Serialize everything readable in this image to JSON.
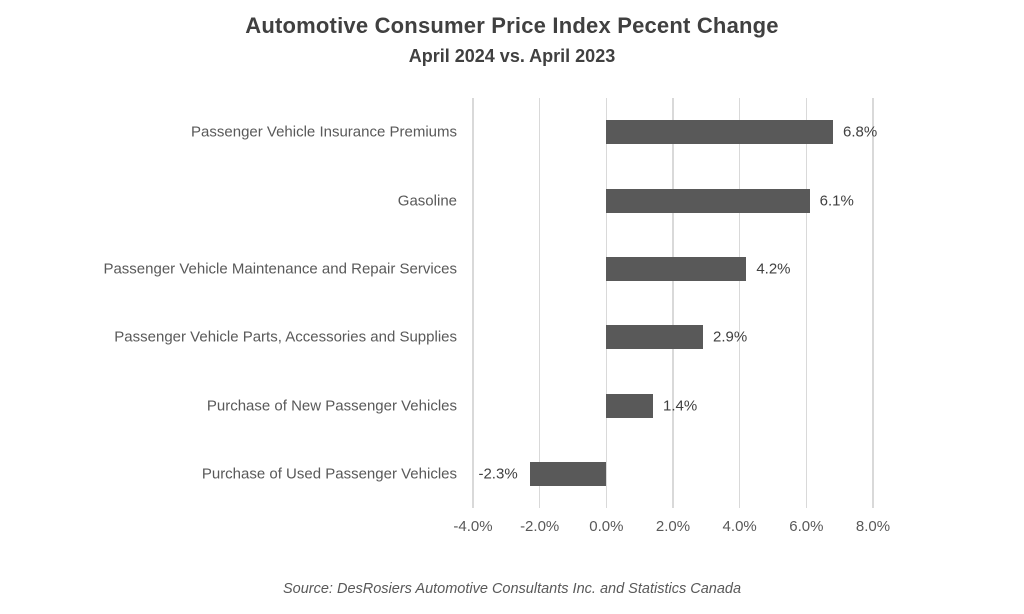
{
  "title": "Automotive Consumer Price Index Pecent Change",
  "subtitle": "April 2024 vs. April 2023",
  "source": "Source: DesRosiers Automotive Consultants Inc. and Statistics Canada",
  "colors": {
    "bar": "#595959",
    "gridline": "#d9d9d9",
    "title_text": "#404040",
    "label_text": "#595959"
  },
  "chart_data": {
    "type": "bar",
    "orientation": "horizontal",
    "title": "Automotive Consumer Price Index Pecent Change",
    "subtitle": "April 2024 vs. April 2023",
    "categories": [
      "Passenger Vehicle Insurance Premiums",
      "Gasoline",
      "Passenger Vehicle Maintenance and Repair Services",
      "Passenger Vehicle Parts, Accessories and Supplies",
      "Purchase of New Passenger Vehicles",
      "Purchase of Used Passenger Vehicles"
    ],
    "values": [
      6.8,
      6.1,
      4.2,
      2.9,
      1.4,
      -2.3
    ],
    "value_labels": [
      "6.8%",
      "6.1%",
      "4.2%",
      "2.9%",
      "1.4%",
      "-2.3%"
    ],
    "xlim": [
      -4,
      8
    ],
    "xticks": [
      -4,
      -2,
      0,
      2,
      4,
      6,
      8
    ],
    "xtick_labels": [
      "-4.0%",
      "-2.0%",
      "0.0%",
      "2.0%",
      "4.0%",
      "6.0%",
      "8.0%"
    ],
    "grid": true,
    "legend": false,
    "xlabel": "",
    "ylabel": ""
  }
}
